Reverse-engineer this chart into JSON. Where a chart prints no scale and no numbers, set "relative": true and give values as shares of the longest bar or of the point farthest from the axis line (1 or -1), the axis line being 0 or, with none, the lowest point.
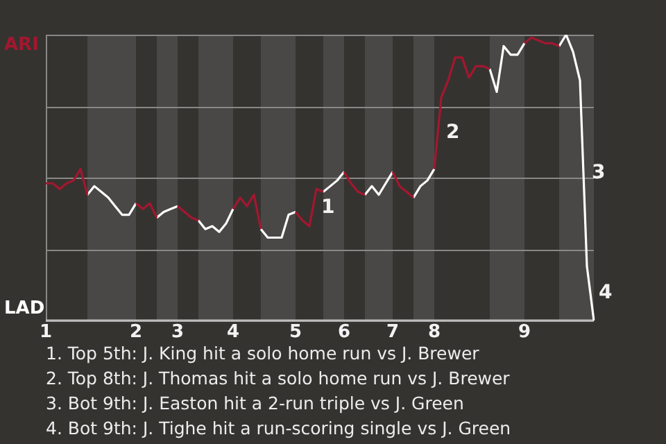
{
  "chart_data": {
    "type": "line",
    "relative": true,
    "categories": [
      "1",
      null,
      null,
      null,
      null,
      null,
      null,
      null,
      null,
      null,
      null,
      null,
      null,
      "2",
      null,
      null,
      null,
      null,
      null,
      "3",
      null,
      null,
      null,
      null,
      null,
      null,
      null,
      "4",
      null,
      null,
      null,
      null,
      null,
      null,
      null,
      null,
      "5",
      null,
      null,
      null,
      null,
      null,
      null,
      "6",
      null,
      null,
      null,
      null,
      null,
      null,
      "7",
      null,
      null,
      null,
      null,
      null,
      "8",
      null,
      null,
      null,
      null,
      null,
      null,
      null,
      null,
      null,
      null,
      null,
      null,
      "9",
      null,
      null,
      null,
      null,
      null,
      null,
      null,
      null,
      null,
      null
    ],
    "grid": "y",
    "legend": false,
    "marker": "none",
    "line_style": "solid",
    "series": [
      {
        "color": "#a3172f",
        "values": [
          0.48,
          0.48,
          0.46,
          0.48,
          0.49,
          0.53,
          0.44,
          null,
          null,
          null,
          null,
          null,
          null,
          0.41,
          0.39,
          0.41,
          0.36,
          null,
          null,
          0.4,
          0.38,
          0.36,
          0.35,
          null,
          null,
          null,
          null,
          0.39,
          0.43,
          0.4,
          0.44,
          0.32,
          null,
          null,
          null,
          null,
          0.38,
          0.35,
          0.33,
          0.46,
          0.45,
          null,
          null,
          0.52,
          0.48,
          0.45,
          0.44,
          null,
          null,
          null,
          0.52,
          0.47,
          0.45,
          0.43,
          null,
          null,
          0.53,
          0.78,
          0.84,
          0.92,
          0.92,
          0.85,
          0.89,
          0.89,
          0.88,
          null,
          null,
          null,
          null,
          0.97,
          0.99,
          0.98,
          0.97,
          0.97,
          0.96,
          null,
          null,
          null,
          null,
          null
        ]
      },
      {
        "color": "#ffffff",
        "values": [
          null,
          null,
          null,
          null,
          null,
          null,
          0.44,
          0.47,
          0.45,
          0.43,
          0.4,
          0.37,
          0.37,
          0.41,
          null,
          null,
          0.36,
          0.38,
          0.39,
          0.4,
          null,
          null,
          0.35,
          0.32,
          0.33,
          0.31,
          0.34,
          0.39,
          null,
          null,
          null,
          0.32,
          0.29,
          0.29,
          0.29,
          0.37,
          0.38,
          null,
          null,
          null,
          0.45,
          0.47,
          0.49,
          0.52,
          null,
          null,
          0.44,
          0.47,
          0.44,
          0.48,
          0.52,
          null,
          null,
          0.43,
          0.47,
          0.49,
          0.53,
          null,
          null,
          null,
          null,
          null,
          null,
          null,
          0.88,
          0.8,
          0.96,
          0.93,
          0.93,
          0.97,
          null,
          null,
          null,
          null,
          0.96,
          1,
          0.94,
          0.84,
          0.19,
          0
        ]
      }
    ],
    "annotations": [
      "ARI",
      "LAD",
      "1",
      "2",
      "3",
      "4",
      "1. Top 5th: J. King hit a solo home run vs J. Brewer",
      "2. Top 8th: J. Thomas hit a solo home run vs J. Brewer",
      "3. Bot 9th: J. Easton hit a 2-run triple vs J. Green",
      "4. Bot 9th: J. Tighe hit a run-scoring single vs J. Green"
    ]
  }
}
